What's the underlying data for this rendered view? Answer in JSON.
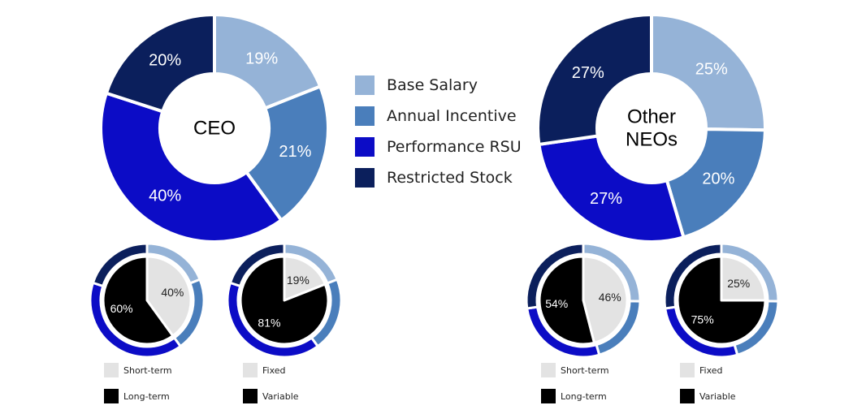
{
  "colors": {
    "base_salary": "#95b3d7",
    "annual_incentive": "#4a7ebb",
    "performance_rsu": "#0c0cc6",
    "restricted_stock": "#0b1f5c",
    "short_term": "#e3e3e3",
    "long_term": "#000000",
    "label_light": "#ffffff",
    "label_dark": "#222222"
  },
  "legend": {
    "items": [
      {
        "label": "Base Salary",
        "color": "#95b3d7"
      },
      {
        "label": "Annual Incentive",
        "color": "#4a7ebb"
      },
      {
        "label": "Performance RSU",
        "color": "#0c0cc6"
      },
      {
        "label": "Restricted Stock",
        "color": "#0b1f5c"
      }
    ]
  },
  "small_legends": [
    {
      "items": [
        {
          "label": "Short-term",
          "color": "#e3e3e3"
        },
        {
          "label": "Long-term",
          "color": "#000000"
        }
      ]
    },
    {
      "items": [
        {
          "label": "Fixed",
          "color": "#e3e3e3"
        },
        {
          "label": "Variable",
          "color": "#000000"
        }
      ]
    },
    {
      "items": [
        {
          "label": "Short-term",
          "color": "#e3e3e3"
        },
        {
          "label": "Long-term",
          "color": "#000000"
        }
      ]
    },
    {
      "items": [
        {
          "label": "Fixed",
          "color": "#e3e3e3"
        },
        {
          "label": "Variable",
          "color": "#000000"
        }
      ]
    }
  ],
  "chart_data": [
    {
      "type": "pie",
      "title": "",
      "center_label": "CEO",
      "categories": [
        "Base Salary",
        "Annual Incentive",
        "Performance RSU",
        "Restricted Stock"
      ],
      "values": [
        19,
        21,
        40,
        20
      ],
      "value_labels": [
        "19%",
        "21%",
        "40%",
        "20%"
      ]
    },
    {
      "type": "pie",
      "title": "",
      "center_label": "Other NEOs",
      "categories": [
        "Base Salary",
        "Annual Incentive",
        "Performance RSU",
        "Restricted Stock"
      ],
      "values": [
        25,
        20,
        27,
        27
      ],
      "value_labels": [
        "25%",
        "20%",
        "27%",
        "27%"
      ]
    },
    {
      "type": "pie",
      "title": "",
      "outer_values": [
        19,
        21,
        40,
        20
      ],
      "categories": [
        "Short-term",
        "Long-term"
      ],
      "values": [
        40,
        60
      ],
      "value_labels": [
        "40%",
        "60%"
      ]
    },
    {
      "type": "pie",
      "title": "",
      "outer_values": [
        19,
        21,
        40,
        20
      ],
      "categories": [
        "Fixed",
        "Variable"
      ],
      "values": [
        19,
        81
      ],
      "value_labels": [
        "19%",
        "81%"
      ]
    },
    {
      "type": "pie",
      "title": "",
      "outer_values": [
        25,
        20,
        27,
        27
      ],
      "categories": [
        "Short-term",
        "Long-term"
      ],
      "values": [
        46,
        54
      ],
      "value_labels": [
        "46%",
        "54%"
      ]
    },
    {
      "type": "pie",
      "title": "",
      "outer_values": [
        25,
        20,
        27,
        27
      ],
      "categories": [
        "Fixed",
        "Variable"
      ],
      "values": [
        25,
        75
      ],
      "value_labels": [
        "25%",
        "75%"
      ]
    }
  ]
}
